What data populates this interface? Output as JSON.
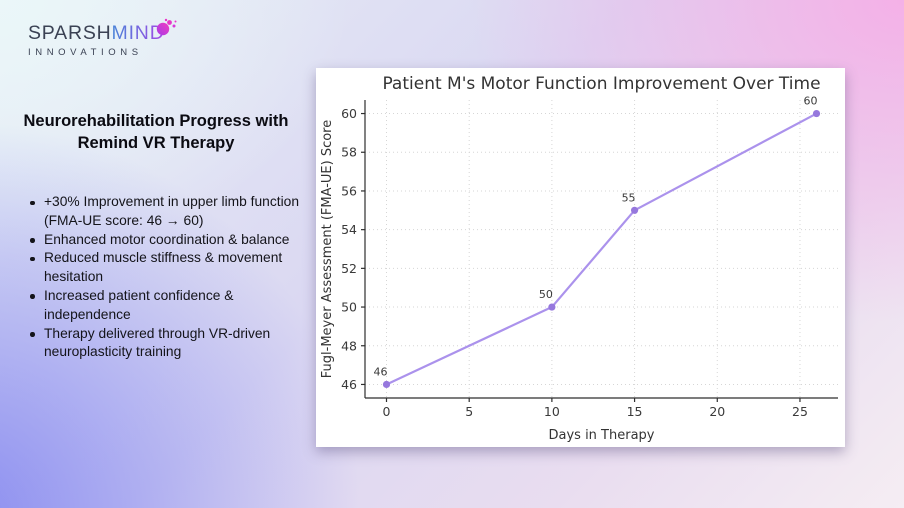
{
  "logo": {
    "brand_part1": "SPARSH",
    "brand_part2": "MIND",
    "subtitle": "INNOVATIONS"
  },
  "left_panel": {
    "heading": "Neurorehabilitation Progress with Remind VR Therapy",
    "bullets": [
      "+30% Improvement in upper limb function (FMA-UE score: 46 → 60)",
      "Enhanced motor coordination & balance",
      "Reduced muscle stiffness & movement hesitation",
      "Increased patient confidence & independence",
      "Therapy delivered through VR-driven neuroplasticity training"
    ]
  },
  "chart_data": {
    "type": "line",
    "title": "Patient M's Motor Function Improvement Over Time",
    "xlabel": "Days in Therapy",
    "ylabel": "Fugl-Meyer Assessment (FMA-UE) Score",
    "x": [
      0,
      10,
      15,
      26
    ],
    "y": [
      46,
      50,
      55,
      60
    ],
    "point_labels": [
      "46",
      "50",
      "55",
      "60"
    ],
    "x_ticks": [
      0,
      5,
      10,
      15,
      20,
      25
    ],
    "y_ticks": [
      46,
      48,
      50,
      52,
      54,
      56,
      58,
      60
    ],
    "xlim": [
      -1.3,
      27.3
    ],
    "ylim": [
      45.3,
      60.7
    ],
    "grid": true,
    "legend": "none",
    "line_color": "#ab92ec",
    "marker_color": "#9678dd"
  },
  "colors": {
    "brand_dark": "#3b4254",
    "brand_blue": "#4a85d8",
    "brand_purple": "#a84ae6",
    "splash_pink": "#e935c8",
    "accent_line": "#ab92ec",
    "card_bg": "#ffffff"
  }
}
